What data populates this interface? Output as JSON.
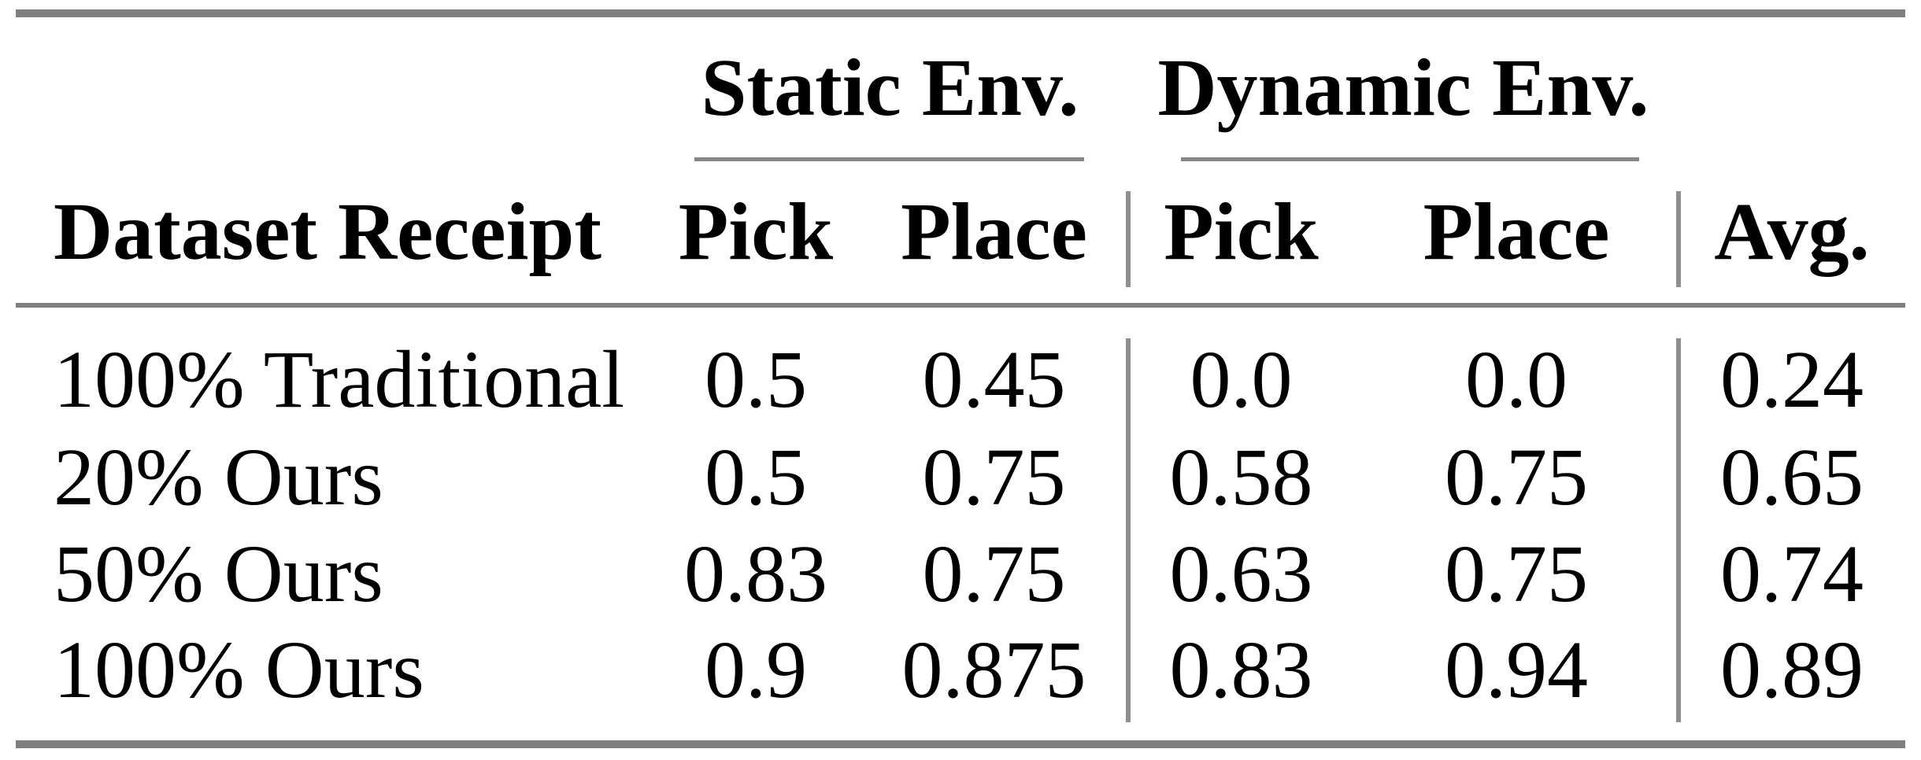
{
  "table": {
    "groups": [
      {
        "label": "Static Env."
      },
      {
        "label": "Dynamic Env."
      }
    ],
    "columns": [
      "Dataset Receipt",
      "Pick",
      "Place",
      "Pick",
      "Place",
      "Avg."
    ],
    "rows": [
      {
        "label": "100% Traditional",
        "values": [
          "0.5",
          "0.45",
          "0.0",
          "0.0",
          "0.24"
        ]
      },
      {
        "label": "20% Ours",
        "values": [
          "0.5",
          "0.75",
          "0.58",
          "0.75",
          "0.65"
        ]
      },
      {
        "label": "50% Ours",
        "values": [
          "0.83",
          "0.75",
          "0.63",
          "0.75",
          "0.74"
        ]
      },
      {
        "label": "100% Ours",
        "values": [
          "0.9",
          "0.875",
          "0.83",
          "0.94",
          "0.89"
        ]
      }
    ],
    "colors": {
      "rule_gray": "#7f7f7f",
      "cmidrule_gray": "#868686",
      "vertical_rule_gray": "#8f8f8f",
      "text": "#000000",
      "background": "#ffffff"
    }
  },
  "chart_data": {
    "type": "table",
    "row_header": "Dataset Receipt",
    "column_groups": [
      {
        "label": "Static Env.",
        "columns": [
          "Pick",
          "Place"
        ]
      },
      {
        "label": "Dynamic Env.",
        "columns": [
          "Pick",
          "Place"
        ]
      }
    ],
    "columns": [
      "Pick (Static Env.)",
      "Place (Static Env.)",
      "Pick (Dynamic Env.)",
      "Place (Dynamic Env.)",
      "Avg."
    ],
    "rows": [
      {
        "dataset_receipt": "100% Traditional",
        "values": [
          0.5,
          0.45,
          0.0,
          0.0,
          0.24
        ]
      },
      {
        "dataset_receipt": "20% Ours",
        "values": [
          0.5,
          0.75,
          0.58,
          0.75,
          0.65
        ]
      },
      {
        "dataset_receipt": "50% Ours",
        "values": [
          0.83,
          0.75,
          0.63,
          0.75,
          0.74
        ]
      },
      {
        "dataset_receipt": "100% Ours",
        "values": [
          0.9,
          0.875,
          0.83,
          0.94,
          0.89
        ]
      }
    ]
  }
}
